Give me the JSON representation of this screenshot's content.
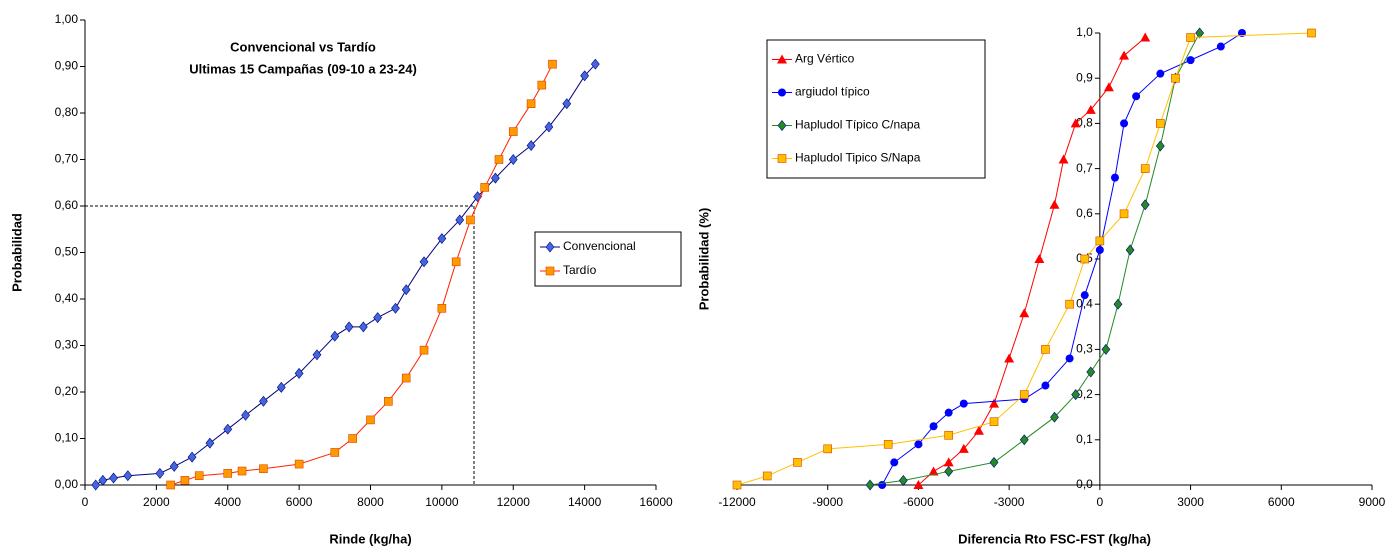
{
  "chart_data": [
    {
      "type": "scatter",
      "title": "Convencional vs Tardío",
      "subtitle": "Ultimas 15 Campañas (09-10 a 23-24)",
      "x_label": "Rinde (kg/ha)",
      "y_label": "Probabilidad",
      "xlim": [
        0,
        16000
      ],
      "xticks": [
        0,
        2000,
        4000,
        6000,
        8000,
        10000,
        12000,
        14000,
        16000
      ],
      "ylim": [
        0,
        1
      ],
      "yticks": [
        {
          "value": 0,
          "label": "0,00"
        },
        {
          "value": 0.1,
          "label": "0,10"
        },
        {
          "value": 0.2,
          "label": "0,20"
        },
        {
          "value": 0.3,
          "label": "0,30"
        },
        {
          "value": 0.4,
          "label": "0,40"
        },
        {
          "value": 0.5,
          "label": "0,50"
        },
        {
          "value": 0.6,
          "label": "0,60"
        },
        {
          "value": 0.7,
          "label": "0,70"
        },
        {
          "value": 0.8,
          "label": "0,80"
        },
        {
          "value": 0.9,
          "label": "0,90"
        },
        {
          "value": 1,
          "label": "1,00"
        }
      ],
      "legend": "center-right",
      "reference": {
        "x": 10900,
        "y": 0.6
      },
      "series": [
        {
          "name": "Convencional",
          "color": "#000080",
          "marker_color": "#4466dd",
          "marker": "diamond",
          "x": [
            300,
            500,
            800,
            1200,
            2100,
            2500,
            3000,
            3500,
            4000,
            4500,
            5000,
            5500,
            6000,
            6500,
            7000,
            7400,
            7800,
            8200,
            8700,
            9000,
            9500,
            10000,
            10500,
            11000,
            11500,
            12000,
            12500,
            13000,
            13500,
            14000,
            14300
          ],
          "values": [
            0,
            0.01,
            0.015,
            0.02,
            0.025,
            0.04,
            0.06,
            0.09,
            0.12,
            0.15,
            0.18,
            0.21,
            0.24,
            0.28,
            0.32,
            0.34,
            0.34,
            0.36,
            0.38,
            0.42,
            0.48,
            0.53,
            0.57,
            0.62,
            0.66,
            0.7,
            0.73,
            0.77,
            0.82,
            0.88,
            0.905
          ]
        },
        {
          "name": "Tardío",
          "color": "#ff2200",
          "marker_color": "#ff9900",
          "marker": "square",
          "x": [
            2400,
            2800,
            3200,
            4000,
            4400,
            5000,
            6000,
            7000,
            7500,
            8000,
            8500,
            9000,
            9500,
            10000,
            10400,
            10800,
            11200,
            11600,
            12000,
            12500,
            12800,
            13100
          ],
          "values": [
            0,
            0.01,
            0.02,
            0.025,
            0.03,
            0.035,
            0.045,
            0.07,
            0.1,
            0.14,
            0.18,
            0.23,
            0.29,
            0.38,
            0.48,
            0.57,
            0.64,
            0.7,
            0.76,
            0.82,
            0.86,
            0.905
          ]
        }
      ]
    },
    {
      "type": "scatter",
      "x_label": "Diferencia Rto FSC-FST (kg/ha)",
      "y_label": "Probabilidad (%)",
      "xlim": [
        -12000,
        9000
      ],
      "xticks": [
        -12000,
        -9000,
        -6000,
        -3000,
        0,
        3000,
        6000,
        9000
      ],
      "ylim": [
        0,
        1
      ],
      "yticks": [
        {
          "value": 0,
          "label": "0,0"
        },
        {
          "value": 0.1,
          "label": "0,1"
        },
        {
          "value": 0.2,
          "label": "0,2"
        },
        {
          "value": 0.3,
          "label": "0,3"
        },
        {
          "value": 0.4,
          "label": "0,4"
        },
        {
          "value": 0.5,
          "label": "0,5"
        },
        {
          "value": 0.6,
          "label": "0,6"
        },
        {
          "value": 0.7,
          "label": "0,7"
        },
        {
          "value": 0.8,
          "label": "0,8"
        },
        {
          "value": 0.9,
          "label": "0,9"
        },
        {
          "value": 1,
          "label": "1,0"
        }
      ],
      "y_axis_at": 0,
      "legend": "top-left",
      "series": [
        {
          "name": "Arg Vértico",
          "color": "#ff0000",
          "marker_color": "#ff0000",
          "marker": "triangle",
          "x": [
            -6000,
            -5500,
            -5000,
            -4500,
            -4000,
            -3500,
            -3000,
            -2500,
            -2000,
            -1500,
            -1200,
            -800,
            -300,
            300,
            800,
            1500
          ],
          "values": [
            0,
            0.03,
            0.05,
            0.08,
            0.12,
            0.18,
            0.28,
            0.38,
            0.5,
            0.62,
            0.72,
            0.8,
            0.83,
            0.88,
            0.95,
            0.99
          ]
        },
        {
          "name": "argiudol típico",
          "color": "#0000ff",
          "marker_color": "#0000ff",
          "marker": "circle",
          "x": [
            -7200,
            -6800,
            -6000,
            -5500,
            -5000,
            -4500,
            -2500,
            -1800,
            -1000,
            -500,
            0,
            500,
            800,
            1200,
            2000,
            3000,
            4000,
            4700
          ],
          "values": [
            0,
            0.05,
            0.09,
            0.13,
            0.16,
            0.18,
            0.19,
            0.22,
            0.28,
            0.42,
            0.52,
            0.68,
            0.8,
            0.86,
            0.91,
            0.94,
            0.97,
            1
          ]
        },
        {
          "name": "Hapludol Típico C/napa",
          "color": "#228b22",
          "marker_color": "#228b22",
          "marker": "diamond",
          "x": [
            -7600,
            -6500,
            -5000,
            -3500,
            -2500,
            -1500,
            -800,
            -300,
            200,
            600,
            1000,
            1500,
            2000,
            2500,
            3300
          ],
          "values": [
            0,
            0.01,
            0.03,
            0.05,
            0.1,
            0.15,
            0.2,
            0.25,
            0.3,
            0.4,
            0.52,
            0.62,
            0.75,
            0.9,
            1
          ]
        },
        {
          "name": "Hapludol Tipico S/Napa",
          "color": "#ffc000",
          "marker_color": "#ffc000",
          "marker": "square",
          "x": [
            -12000,
            -11000,
            -10000,
            -9000,
            -7000,
            -5000,
            -3500,
            -2500,
            -1800,
            -1000,
            -500,
            0,
            800,
            1500,
            2000,
            2500,
            3000,
            7000
          ],
          "values": [
            0,
            0.02,
            0.05,
            0.08,
            0.09,
            0.11,
            0.14,
            0.2,
            0.3,
            0.4,
            0.5,
            0.54,
            0.6,
            0.7,
            0.8,
            0.9,
            0.99,
            1
          ]
        }
      ]
    }
  ]
}
